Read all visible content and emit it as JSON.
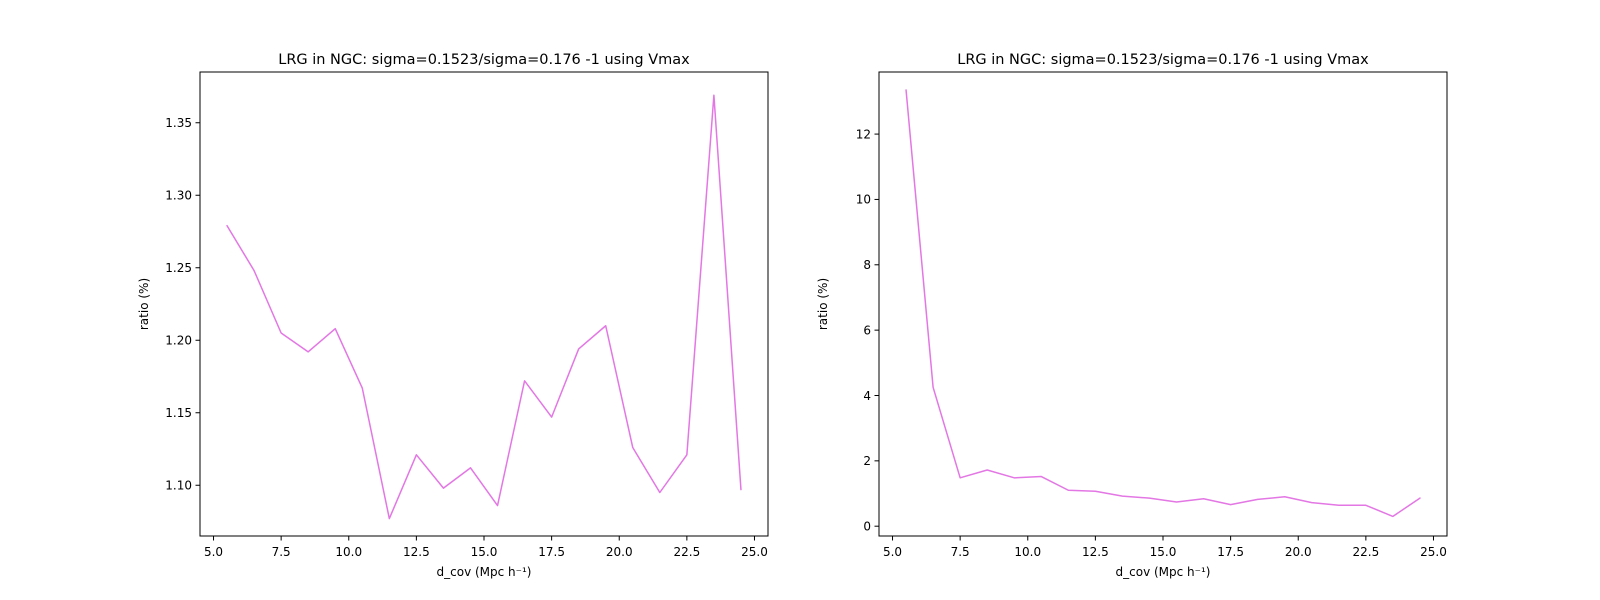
{
  "chart_data": [
    {
      "type": "line",
      "title": "LRG in NGC: sigma=0.1523/sigma=0.176 -1 using Vmax",
      "xlabel": "d_cov (Mpc h⁻¹)",
      "ylabel": "ratio (%)",
      "xlim": [
        4.5,
        25.5
      ],
      "ylim": [
        1.065,
        1.385
      ],
      "xticks": [
        5.0,
        7.5,
        10.0,
        12.5,
        15.0,
        17.5,
        20.0,
        22.5,
        25.0
      ],
      "xtick_labels": [
        "5.0",
        "7.5",
        "10.0",
        "12.5",
        "15.0",
        "17.5",
        "20.0",
        "22.5",
        "25.0"
      ],
      "yticks": [
        1.1,
        1.15,
        1.2,
        1.25,
        1.3,
        1.35
      ],
      "ytick_labels": [
        "1.10",
        "1.15",
        "1.20",
        "1.25",
        "1.30",
        "1.35"
      ],
      "grid": false,
      "color": "#e377e4",
      "x": [
        5.5,
        6.5,
        7.5,
        8.5,
        9.5,
        10.5,
        11.5,
        12.5,
        13.5,
        14.5,
        15.5,
        16.5,
        17.5,
        18.5,
        19.5,
        20.5,
        21.5,
        22.5,
        23.5,
        24.5
      ],
      "y": [
        1.279,
        1.248,
        1.205,
        1.192,
        1.208,
        1.167,
        1.077,
        1.121,
        1.098,
        1.112,
        1.086,
        1.172,
        1.147,
        1.194,
        1.21,
        1.126,
        1.095,
        1.121,
        1.369,
        1.097
      ]
    },
    {
      "type": "line",
      "title": "LRG in NGC: sigma=0.1523/sigma=0.176 -1 using Vmax",
      "xlabel": "d_cov (Mpc h⁻¹)",
      "ylabel": "ratio (%)",
      "xlim": [
        4.5,
        25.5
      ],
      "ylim": [
        -0.3,
        13.9
      ],
      "xticks": [
        5.0,
        7.5,
        10.0,
        12.5,
        15.0,
        17.5,
        20.0,
        22.5,
        25.0
      ],
      "xtick_labels": [
        "5.0",
        "7.5",
        "10.0",
        "12.5",
        "15.0",
        "17.5",
        "20.0",
        "22.5",
        "25.0"
      ],
      "yticks": [
        0,
        2,
        4,
        6,
        8,
        10,
        12
      ],
      "ytick_labels": [
        "0",
        "2",
        "4",
        "6",
        "8",
        "10",
        "12"
      ],
      "grid": false,
      "color": "#e377e4",
      "x": [
        5.5,
        6.5,
        7.5,
        8.5,
        9.5,
        10.5,
        11.5,
        12.5,
        13.5,
        14.5,
        15.5,
        16.5,
        17.5,
        18.5,
        19.5,
        20.5,
        21.5,
        22.5,
        23.5,
        24.5
      ],
      "y": [
        13.35,
        4.25,
        1.48,
        1.72,
        1.48,
        1.52,
        1.1,
        1.07,
        0.92,
        0.86,
        0.74,
        0.84,
        0.66,
        0.82,
        0.9,
        0.72,
        0.64,
        0.64,
        0.3,
        0.86
      ]
    }
  ]
}
